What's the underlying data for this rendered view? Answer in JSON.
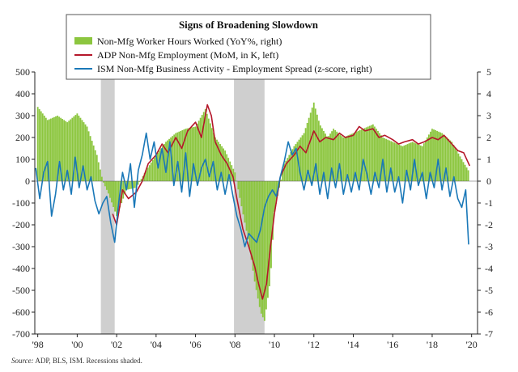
{
  "chart_data": {
    "type": "bar+line",
    "title": "Signs of Broadening Slowdown",
    "source_label": "Source:",
    "source_text": "ADP, BLS, ISM. Recessions shaded.",
    "x_ticks": [
      "'98",
      "'00",
      "'02",
      "'04",
      "'06",
      "'08",
      "'10",
      "'12",
      "'14",
      "'16",
      "'18",
      "'20"
    ],
    "x_tick_years": [
      1998,
      2000,
      2002,
      2004,
      2006,
      2008,
      2010,
      2012,
      2014,
      2016,
      2018,
      2020
    ],
    "xlim": [
      1997.85,
      2020.3
    ],
    "left_axis": {
      "ylim": [
        -700,
        500
      ],
      "ticks": [
        500,
        400,
        300,
        200,
        100,
        0,
        -100,
        -200,
        -300,
        -400,
        -500,
        -600,
        -700
      ]
    },
    "right_axis": {
      "ylim": [
        -7,
        5
      ],
      "ticks": [
        5,
        4,
        3,
        2,
        1,
        0,
        -1,
        -2,
        -3,
        -4,
        -5,
        -6,
        -7
      ]
    },
    "grid": false,
    "legend_placement": "top-center",
    "recessions": [
      [
        2001.2,
        2001.9
      ],
      [
        2007.95,
        2009.5
      ]
    ],
    "series": [
      {
        "name": "Non-Mfg Worker Hours Worked (YoY%, right)",
        "kind": "bar",
        "axis": "right",
        "color": "#8cc63f",
        "points": [
          [
            1998.0,
            3.4
          ],
          [
            1998.5,
            2.8
          ],
          [
            1999.0,
            3.0
          ],
          [
            1999.5,
            2.7
          ],
          [
            2000.0,
            3.1
          ],
          [
            2000.5,
            2.5
          ],
          [
            2001.0,
            1.2
          ],
          [
            2001.3,
            0.0
          ],
          [
            2001.6,
            -0.6
          ],
          [
            2002.0,
            -1.6
          ],
          [
            2002.5,
            -0.4
          ],
          [
            2003.0,
            -0.3
          ],
          [
            2003.5,
            0.5
          ],
          [
            2004.0,
            1.2
          ],
          [
            2004.5,
            1.8
          ],
          [
            2005.0,
            2.2
          ],
          [
            2005.5,
            2.4
          ],
          [
            2006.0,
            2.5
          ],
          [
            2006.5,
            3.3
          ],
          [
            2007.0,
            2.0
          ],
          [
            2007.5,
            1.4
          ],
          [
            2008.0,
            0.4
          ],
          [
            2008.3,
            -1.0
          ],
          [
            2008.7,
            -2.8
          ],
          [
            2009.0,
            -4.6
          ],
          [
            2009.3,
            -6.0
          ],
          [
            2009.5,
            -6.4
          ],
          [
            2009.8,
            -4.5
          ],
          [
            2010.0,
            -1.4
          ],
          [
            2010.5,
            0.8
          ],
          [
            2011.0,
            1.6
          ],
          [
            2011.5,
            2.2
          ],
          [
            2012.0,
            3.6
          ],
          [
            2012.3,
            2.6
          ],
          [
            2012.7,
            2.0
          ],
          [
            2013.0,
            2.4
          ],
          [
            2013.5,
            2.0
          ],
          [
            2014.0,
            2.2
          ],
          [
            2014.5,
            2.4
          ],
          [
            2015.0,
            2.6
          ],
          [
            2015.5,
            2.0
          ],
          [
            2016.0,
            1.8
          ],
          [
            2016.5,
            1.6
          ],
          [
            2017.0,
            1.8
          ],
          [
            2017.5,
            1.6
          ],
          [
            2018.0,
            2.4
          ],
          [
            2018.5,
            2.2
          ],
          [
            2019.0,
            1.8
          ],
          [
            2019.5,
            1.0
          ],
          [
            2019.9,
            0.4
          ]
        ]
      },
      {
        "name": "ADP Non-Mfg Employment (MoM, in K, left)",
        "kind": "line",
        "axis": "left",
        "color": "#b5172a",
        "points": [
          [
            2001.8,
            -150
          ],
          [
            2002.0,
            -200
          ],
          [
            2002.3,
            -40
          ],
          [
            2002.6,
            -80
          ],
          [
            2003.0,
            -50
          ],
          [
            2003.3,
            0
          ],
          [
            2003.6,
            80
          ],
          [
            2004.0,
            120
          ],
          [
            2004.3,
            170
          ],
          [
            2004.6,
            130
          ],
          [
            2005.0,
            200
          ],
          [
            2005.3,
            150
          ],
          [
            2005.6,
            230
          ],
          [
            2006.0,
            270
          ],
          [
            2006.3,
            200
          ],
          [
            2006.6,
            350
          ],
          [
            2006.8,
            300
          ],
          [
            2007.0,
            180
          ],
          [
            2007.3,
            120
          ],
          [
            2007.6,
            80
          ],
          [
            2007.9,
            20
          ],
          [
            2008.1,
            -80
          ],
          [
            2008.4,
            -220
          ],
          [
            2008.7,
            -300
          ],
          [
            2009.0,
            -390
          ],
          [
            2009.2,
            -470
          ],
          [
            2009.4,
            -540
          ],
          [
            2009.6,
            -470
          ],
          [
            2009.8,
            -300
          ],
          [
            2010.0,
            -150
          ],
          [
            2010.3,
            20
          ],
          [
            2010.6,
            80
          ],
          [
            2011.0,
            120
          ],
          [
            2011.3,
            160
          ],
          [
            2011.6,
            130
          ],
          [
            2012.0,
            230
          ],
          [
            2012.3,
            180
          ],
          [
            2012.6,
            200
          ],
          [
            2013.0,
            190
          ],
          [
            2013.3,
            220
          ],
          [
            2013.6,
            200
          ],
          [
            2014.0,
            210
          ],
          [
            2014.3,
            250
          ],
          [
            2014.6,
            230
          ],
          [
            2015.0,
            240
          ],
          [
            2015.3,
            200
          ],
          [
            2015.6,
            210
          ],
          [
            2016.0,
            190
          ],
          [
            2016.3,
            170
          ],
          [
            2016.6,
            180
          ],
          [
            2017.0,
            190
          ],
          [
            2017.3,
            170
          ],
          [
            2017.6,
            180
          ],
          [
            2018.0,
            200
          ],
          [
            2018.3,
            190
          ],
          [
            2018.6,
            210
          ],
          [
            2019.0,
            170
          ],
          [
            2019.3,
            140
          ],
          [
            2019.6,
            130
          ],
          [
            2019.9,
            70
          ]
        ]
      },
      {
        "name": "ISM Non-Mfg Business Activity - Employment Spread (z-score, right)",
        "kind": "line",
        "axis": "right",
        "color": "#1a78b8",
        "points": [
          [
            1997.9,
            0.6
          ],
          [
            1998.1,
            -0.8
          ],
          [
            1998.3,
            0.4
          ],
          [
            1998.5,
            0.9
          ],
          [
            1998.7,
            -1.6
          ],
          [
            1998.9,
            -0.6
          ],
          [
            1999.1,
            0.9
          ],
          [
            1999.3,
            -0.4
          ],
          [
            1999.5,
            0.5
          ],
          [
            1999.7,
            -0.6
          ],
          [
            1999.9,
            1.1
          ],
          [
            2000.1,
            -0.3
          ],
          [
            2000.3,
            0.7
          ],
          [
            2000.5,
            -0.4
          ],
          [
            2000.7,
            0.2
          ],
          [
            2000.9,
            -0.9
          ],
          [
            2001.1,
            -1.5
          ],
          [
            2001.3,
            -1.0
          ],
          [
            2001.5,
            -0.7
          ],
          [
            2001.7,
            -1.9
          ],
          [
            2001.9,
            -2.8
          ],
          [
            2002.1,
            -1.0
          ],
          [
            2002.3,
            0.4
          ],
          [
            2002.5,
            -0.4
          ],
          [
            2002.7,
            0.8
          ],
          [
            2002.9,
            -1.2
          ],
          [
            2003.1,
            0.5
          ],
          [
            2003.3,
            1.2
          ],
          [
            2003.5,
            2.2
          ],
          [
            2003.7,
            1.0
          ],
          [
            2003.9,
            1.8
          ],
          [
            2004.1,
            0.6
          ],
          [
            2004.3,
            1.5
          ],
          [
            2004.5,
            0.4
          ],
          [
            2004.7,
            1.8
          ],
          [
            2004.9,
            -0.2
          ],
          [
            2005.1,
            0.9
          ],
          [
            2005.3,
            -0.5
          ],
          [
            2005.5,
            1.3
          ],
          [
            2005.7,
            -0.7
          ],
          [
            2005.9,
            0.8
          ],
          [
            2006.1,
            -0.2
          ],
          [
            2006.3,
            0.6
          ],
          [
            2006.5,
            1.0
          ],
          [
            2006.7,
            0.2
          ],
          [
            2006.9,
            0.9
          ],
          [
            2007.1,
            -0.4
          ],
          [
            2007.3,
            0.4
          ],
          [
            2007.5,
            -0.6
          ],
          [
            2007.7,
            0.3
          ],
          [
            2007.9,
            -0.7
          ],
          [
            2008.1,
            -1.6
          ],
          [
            2008.3,
            -2.2
          ],
          [
            2008.5,
            -3.0
          ],
          [
            2008.7,
            -2.4
          ],
          [
            2008.9,
            -2.6
          ],
          [
            2009.1,
            -2.8
          ],
          [
            2009.3,
            -2.2
          ],
          [
            2009.5,
            -1.2
          ],
          [
            2009.7,
            -0.7
          ],
          [
            2009.9,
            -0.4
          ],
          [
            2010.1,
            -0.7
          ],
          [
            2010.3,
            0.2
          ],
          [
            2010.5,
            0.9
          ],
          [
            2010.7,
            1.8
          ],
          [
            2010.9,
            1.2
          ],
          [
            2011.1,
            1.5
          ],
          [
            2011.3,
            0.4
          ],
          [
            2011.5,
            -0.4
          ],
          [
            2011.7,
            0.5
          ],
          [
            2011.9,
            -0.2
          ],
          [
            2012.1,
            0.8
          ],
          [
            2012.3,
            -0.6
          ],
          [
            2012.5,
            0.4
          ],
          [
            2012.7,
            -0.8
          ],
          [
            2012.9,
            0.6
          ],
          [
            2013.1,
            -0.3
          ],
          [
            2013.3,
            0.8
          ],
          [
            2013.5,
            -0.6
          ],
          [
            2013.7,
            0.3
          ],
          [
            2013.9,
            -0.5
          ],
          [
            2014.1,
            0.4
          ],
          [
            2014.3,
            -0.4
          ],
          [
            2014.5,
            1.0
          ],
          [
            2014.7,
            0.3
          ],
          [
            2014.9,
            -0.6
          ],
          [
            2015.1,
            0.4
          ],
          [
            2015.3,
            -0.3
          ],
          [
            2015.5,
            1.0
          ],
          [
            2015.7,
            -0.5
          ],
          [
            2015.9,
            0.6
          ],
          [
            2016.1,
            -0.5
          ],
          [
            2016.3,
            0.2
          ],
          [
            2016.5,
            -1.0
          ],
          [
            2016.7,
            0.5
          ],
          [
            2016.9,
            -0.4
          ],
          [
            2017.1,
            1.0
          ],
          [
            2017.3,
            -0.2
          ],
          [
            2017.5,
            0.4
          ],
          [
            2017.7,
            -0.8
          ],
          [
            2017.9,
            0.4
          ],
          [
            2018.1,
            -0.3
          ],
          [
            2018.3,
            1.0
          ],
          [
            2018.5,
            -0.4
          ],
          [
            2018.7,
            0.6
          ],
          [
            2018.9,
            -0.7
          ],
          [
            2019.1,
            0.2
          ],
          [
            2019.3,
            -0.8
          ],
          [
            2019.5,
            -1.2
          ],
          [
            2019.7,
            -0.4
          ],
          [
            2019.85,
            -2.9
          ]
        ]
      }
    ]
  }
}
